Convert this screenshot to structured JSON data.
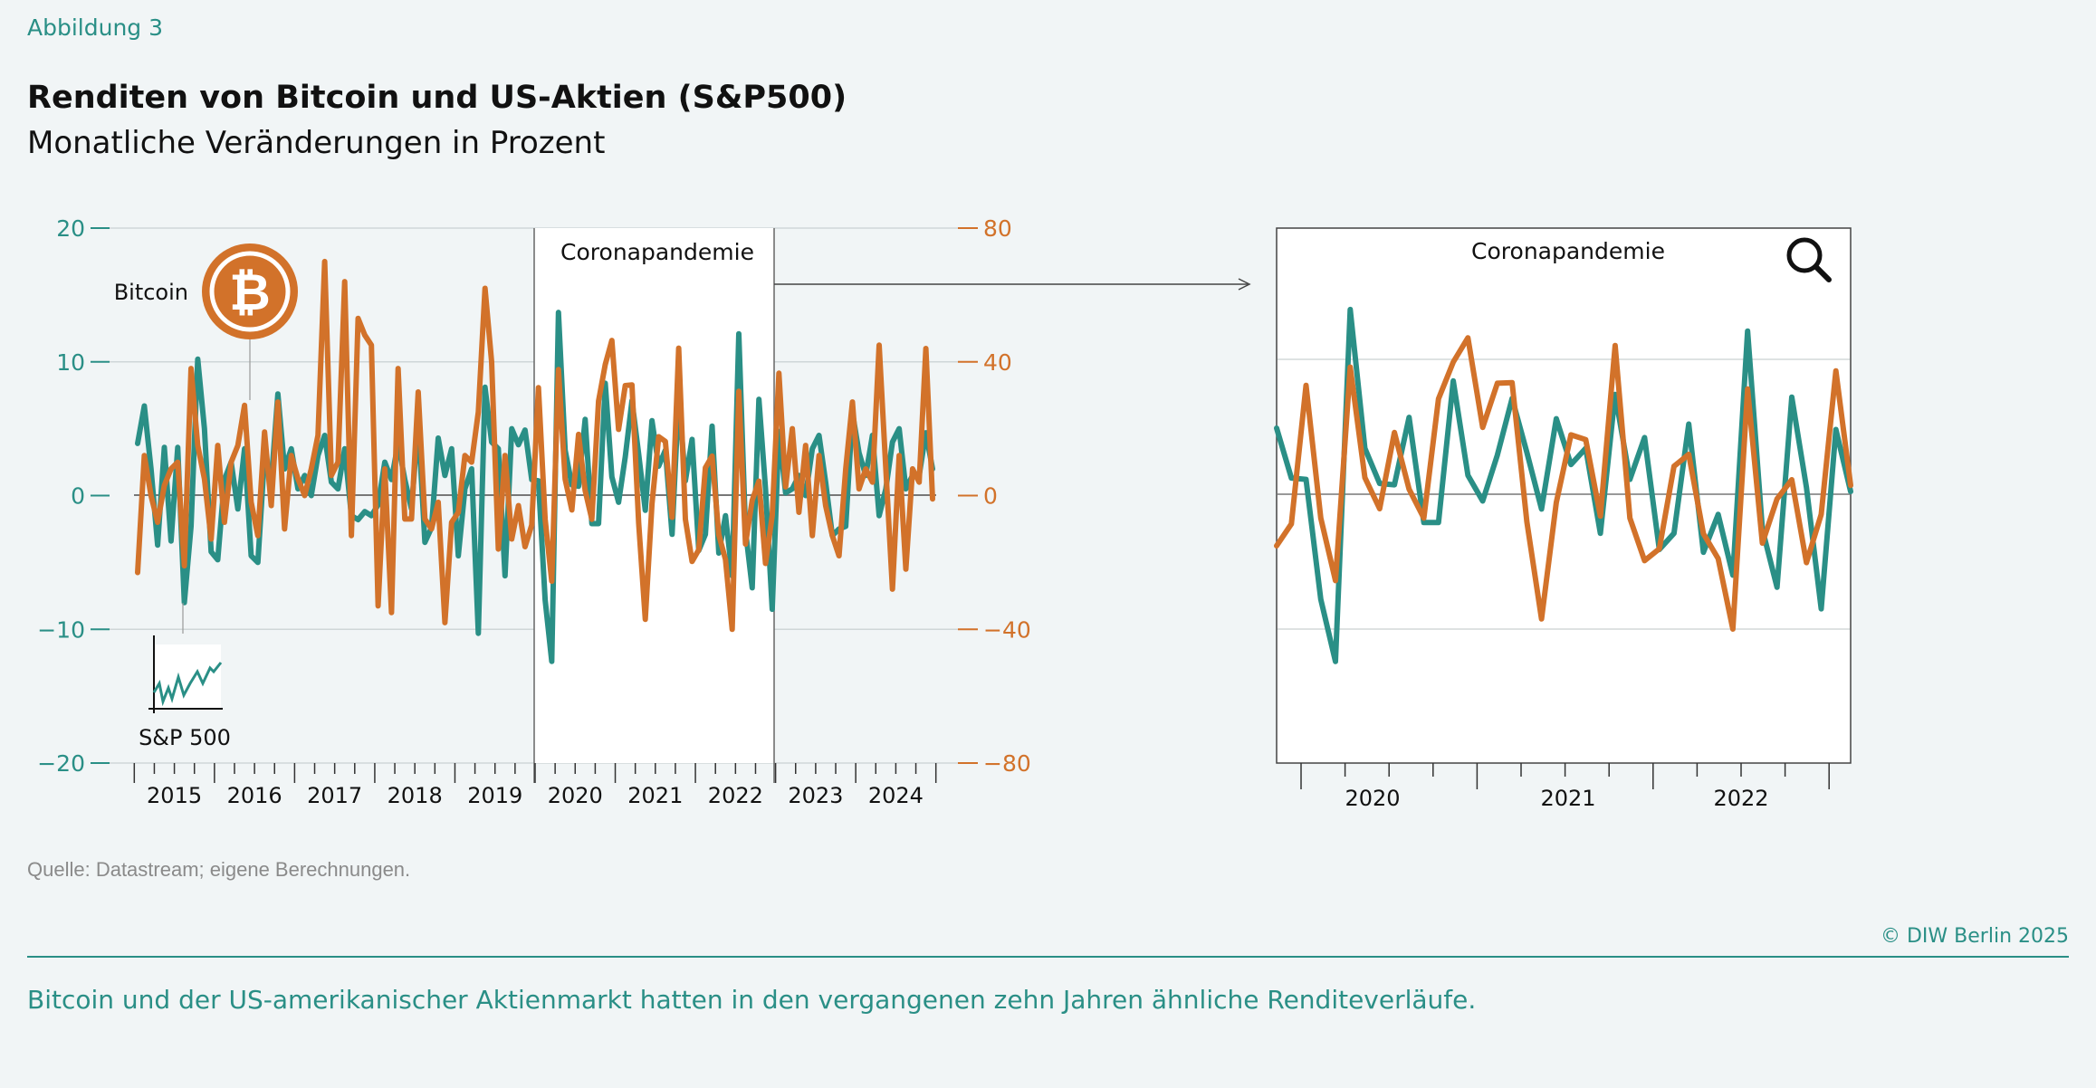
{
  "figure_label": "Abbildung 3",
  "title": "Renditen von Bitcoin und US-Aktien (S&P500)",
  "subtitle": "Monatliche Veränderungen in Prozent",
  "source": "Quelle: Datastream; eigene Berechnungen.",
  "copyright": "© DIW Berlin 2025",
  "caption": "Bitcoin und der US-amerikanischer Aktienmarkt hatten in den vergangenen zehn Jahren ähnliche Renditeverläufe.",
  "colors": {
    "sp500": "#2a8f86",
    "bitcoin": "#d2722a",
    "background": "#f1f5f6",
    "highlight": "#ffffff"
  },
  "icons": {
    "bitcoin": "bitcoin-logo-icon",
    "sp500": "sp500-chart-icon",
    "zoom": "magnifier-icon",
    "arrow": "arrow-right-icon"
  },
  "chart_data": [
    {
      "type": "line",
      "x_range": [
        "2015-01",
        "2024-12"
      ],
      "frequency": "monthly",
      "x_tick_labels": [
        "2015",
        "2016",
        "2017",
        "2018",
        "2019",
        "2020",
        "2021",
        "2022",
        "2023",
        "2024"
      ],
      "y_left": {
        "ylim": [
          -20,
          20
        ],
        "ticks": [
          "20",
          "10",
          "0",
          "−10",
          "−20"
        ],
        "series": "S&P 500"
      },
      "y_right": {
        "ylim": [
          -80,
          80
        ],
        "ticks": [
          "80",
          "40",
          "0",
          "−40",
          "−80"
        ],
        "series": "Bitcoin"
      },
      "grid": true,
      "annotations": {
        "highlight_label": "Coronapandemie",
        "highlight_range": [
          "2020-01",
          "2022-12"
        ],
        "bitcoin_label": "Bitcoin",
        "sp500_label": "S&P 500"
      },
      "series": [
        {
          "name": "S&P 500",
          "axis": "left",
          "values": [
            3.9,
            6.7,
            2.0,
            -3.7,
            3.6,
            -3.4,
            3.6,
            -8.0,
            -2.3,
            10.2,
            5.0,
            -4.2,
            -4.8,
            1.2,
            2.5,
            -1.0,
            3.5,
            -4.5,
            -5.0,
            3.0,
            1.0,
            7.6,
            2.0,
            3.5,
            0.5,
            1.5,
            0.0,
            3.0,
            4.5,
            1.0,
            0.5,
            3.5,
            -1.5,
            -1.8,
            -1.2,
            -1.5,
            -0.7,
            2.5,
            1.2,
            3.9,
            1.2,
            -1.0,
            5.5,
            -3.5,
            -2.4,
            4.3,
            1.5,
            3.5,
            -4.5,
            0.5,
            2.0,
            -10.3,
            8.1,
            4.0,
            3.5,
            -6.0,
            5.0,
            3.8,
            4.9,
            1.2,
            1.1,
            -7.8,
            -12.4,
            13.7,
            3.4,
            0.8,
            0.7,
            5.7,
            -2.1,
            -2.1,
            8.4,
            1.4,
            -0.5,
            2.9,
            7.1,
            3.1,
            -1.1,
            5.6,
            2.2,
            3.4,
            -2.9,
            7.4,
            1.1,
            4.2,
            -4.1,
            -2.9,
            5.2,
            -4.3,
            -1.5,
            -6.0,
            12.1,
            -2.6,
            -6.9,
            7.2,
            0.5,
            -8.5,
            4.8,
            0.2,
            0.5,
            1.5,
            0.0,
            3.5,
            4.5,
            1.0,
            -3.0,
            -2.5,
            -2.3,
            6.2,
            3.2,
            1.5,
            4.5,
            -1.5,
            0.5,
            4.0,
            5.0,
            0.5,
            1.5,
            1.5,
            4.7,
            2.0
          ]
        },
        {
          "name": "Bitcoin",
          "axis": "right",
          "values": [
            -23,
            12,
            0,
            -8,
            3,
            8,
            10,
            -21,
            38,
            15,
            5,
            -13,
            15,
            -8,
            10,
            15,
            27,
            -2,
            -12,
            19,
            -3,
            28,
            -10,
            12,
            5,
            0,
            8,
            18,
            70,
            6,
            10,
            64,
            -12,
            53,
            48,
            45,
            -33,
            8,
            -35,
            38,
            -7,
            -7,
            31,
            -7,
            -10,
            -2,
            -38,
            -8,
            -5,
            12,
            10,
            25,
            62,
            40,
            -16,
            12,
            -13,
            -3,
            -15.3,
            -8.8,
            32.3,
            -7.1,
            -25.6,
            37.7,
            4.9,
            -4.3,
            18.3,
            1.5,
            -7.1,
            28.3,
            39.2,
            46.4,
            19.8,
            32.9,
            33.1,
            -8.2,
            -37.0,
            -2.5,
            17.6,
            16.2,
            -6.5,
            44.1,
            -7.1,
            -19.7,
            -16.2,
            8.3,
            11.8,
            -11.7,
            -19.1,
            -40.0,
            31.2,
            -14.5,
            -1.4,
            4.3,
            -20.3,
            -6.0,
            36.6,
            2.6,
            20,
            -5,
            15,
            -12,
            12,
            -3,
            -12,
            -18,
            8,
            28,
            2,
            8,
            4,
            45,
            8,
            -28,
            12,
            -22,
            8,
            4,
            44,
            -1
          ]
        }
      ]
    },
    {
      "type": "line",
      "title": "Coronapandemie",
      "x_range": [
        "2019-11",
        "2023-02"
      ],
      "x_tick_labels": [
        "2020",
        "2021",
        "2022"
      ],
      "y_left": {
        "ylim": [
          -20,
          20
        ]
      },
      "y_right": {
        "ylim": [
          -80,
          80
        ]
      },
      "grid": true,
      "series_source": "same monthly series as first chart, restricted to x_range"
    }
  ]
}
